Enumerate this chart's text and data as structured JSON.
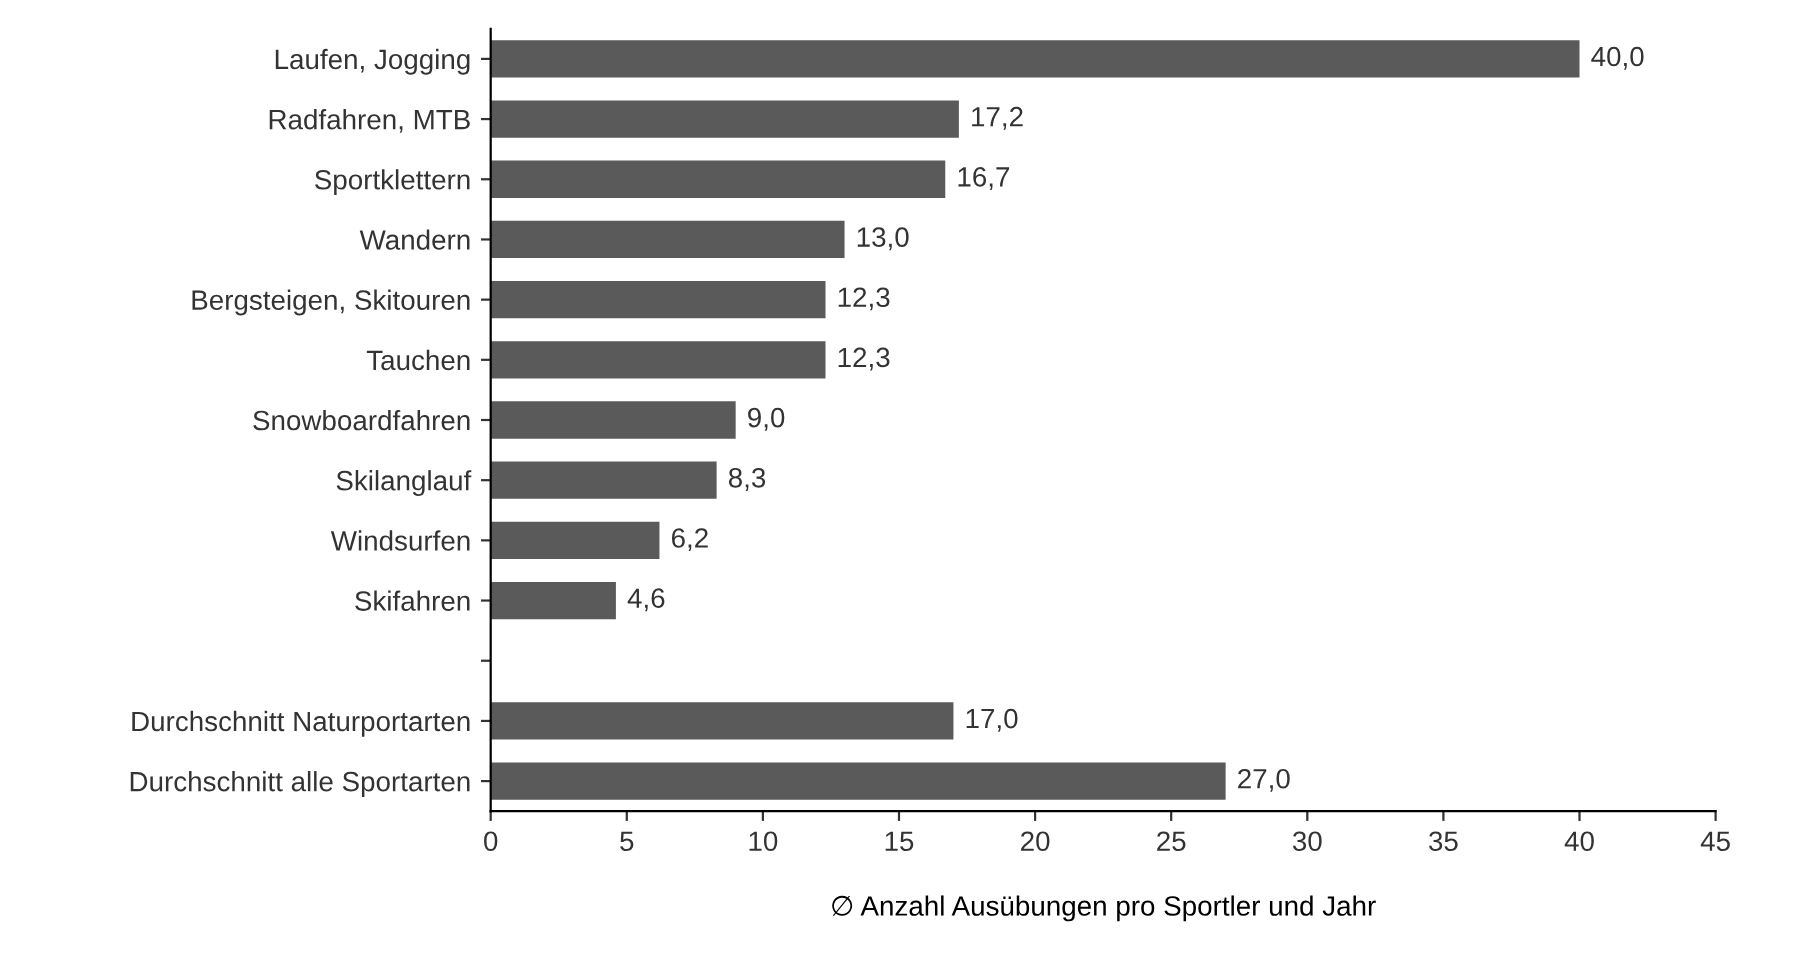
{
  "chart_data": {
    "type": "bar",
    "orientation": "horizontal",
    "xlabel": "∅ Anzahl Ausübungen pro Sportler und Jahr",
    "categories": [
      "Laufen, Jogging",
      "Radfahren, MTB",
      "Sportklettern",
      "Wandern",
      "Bergsteigen, Skitouren",
      "Tauchen",
      "Snowboardfahren",
      "Skilanglauf",
      "Windsurfen",
      "Skifahren",
      null,
      "Durchschnitt Naturportarten",
      "Durchschnitt alle Sportarten"
    ],
    "values": [
      40.0,
      17.2,
      16.7,
      13.0,
      12.3,
      12.3,
      9.0,
      8.3,
      6.2,
      4.6,
      null,
      17.0,
      27.0
    ],
    "value_labels": [
      "40,0",
      "17,2",
      "16,7",
      "13,0",
      "12,3",
      "12,3",
      "9,0",
      "8,3",
      "6,2",
      "4,6",
      null,
      "17,0",
      "27,0"
    ],
    "color": "#5a5a5a",
    "xlim": [
      0,
      45
    ],
    "xticks": [
      0,
      5,
      10,
      15,
      20,
      25,
      30,
      35,
      40,
      45
    ],
    "grid": false,
    "legend": false
  }
}
